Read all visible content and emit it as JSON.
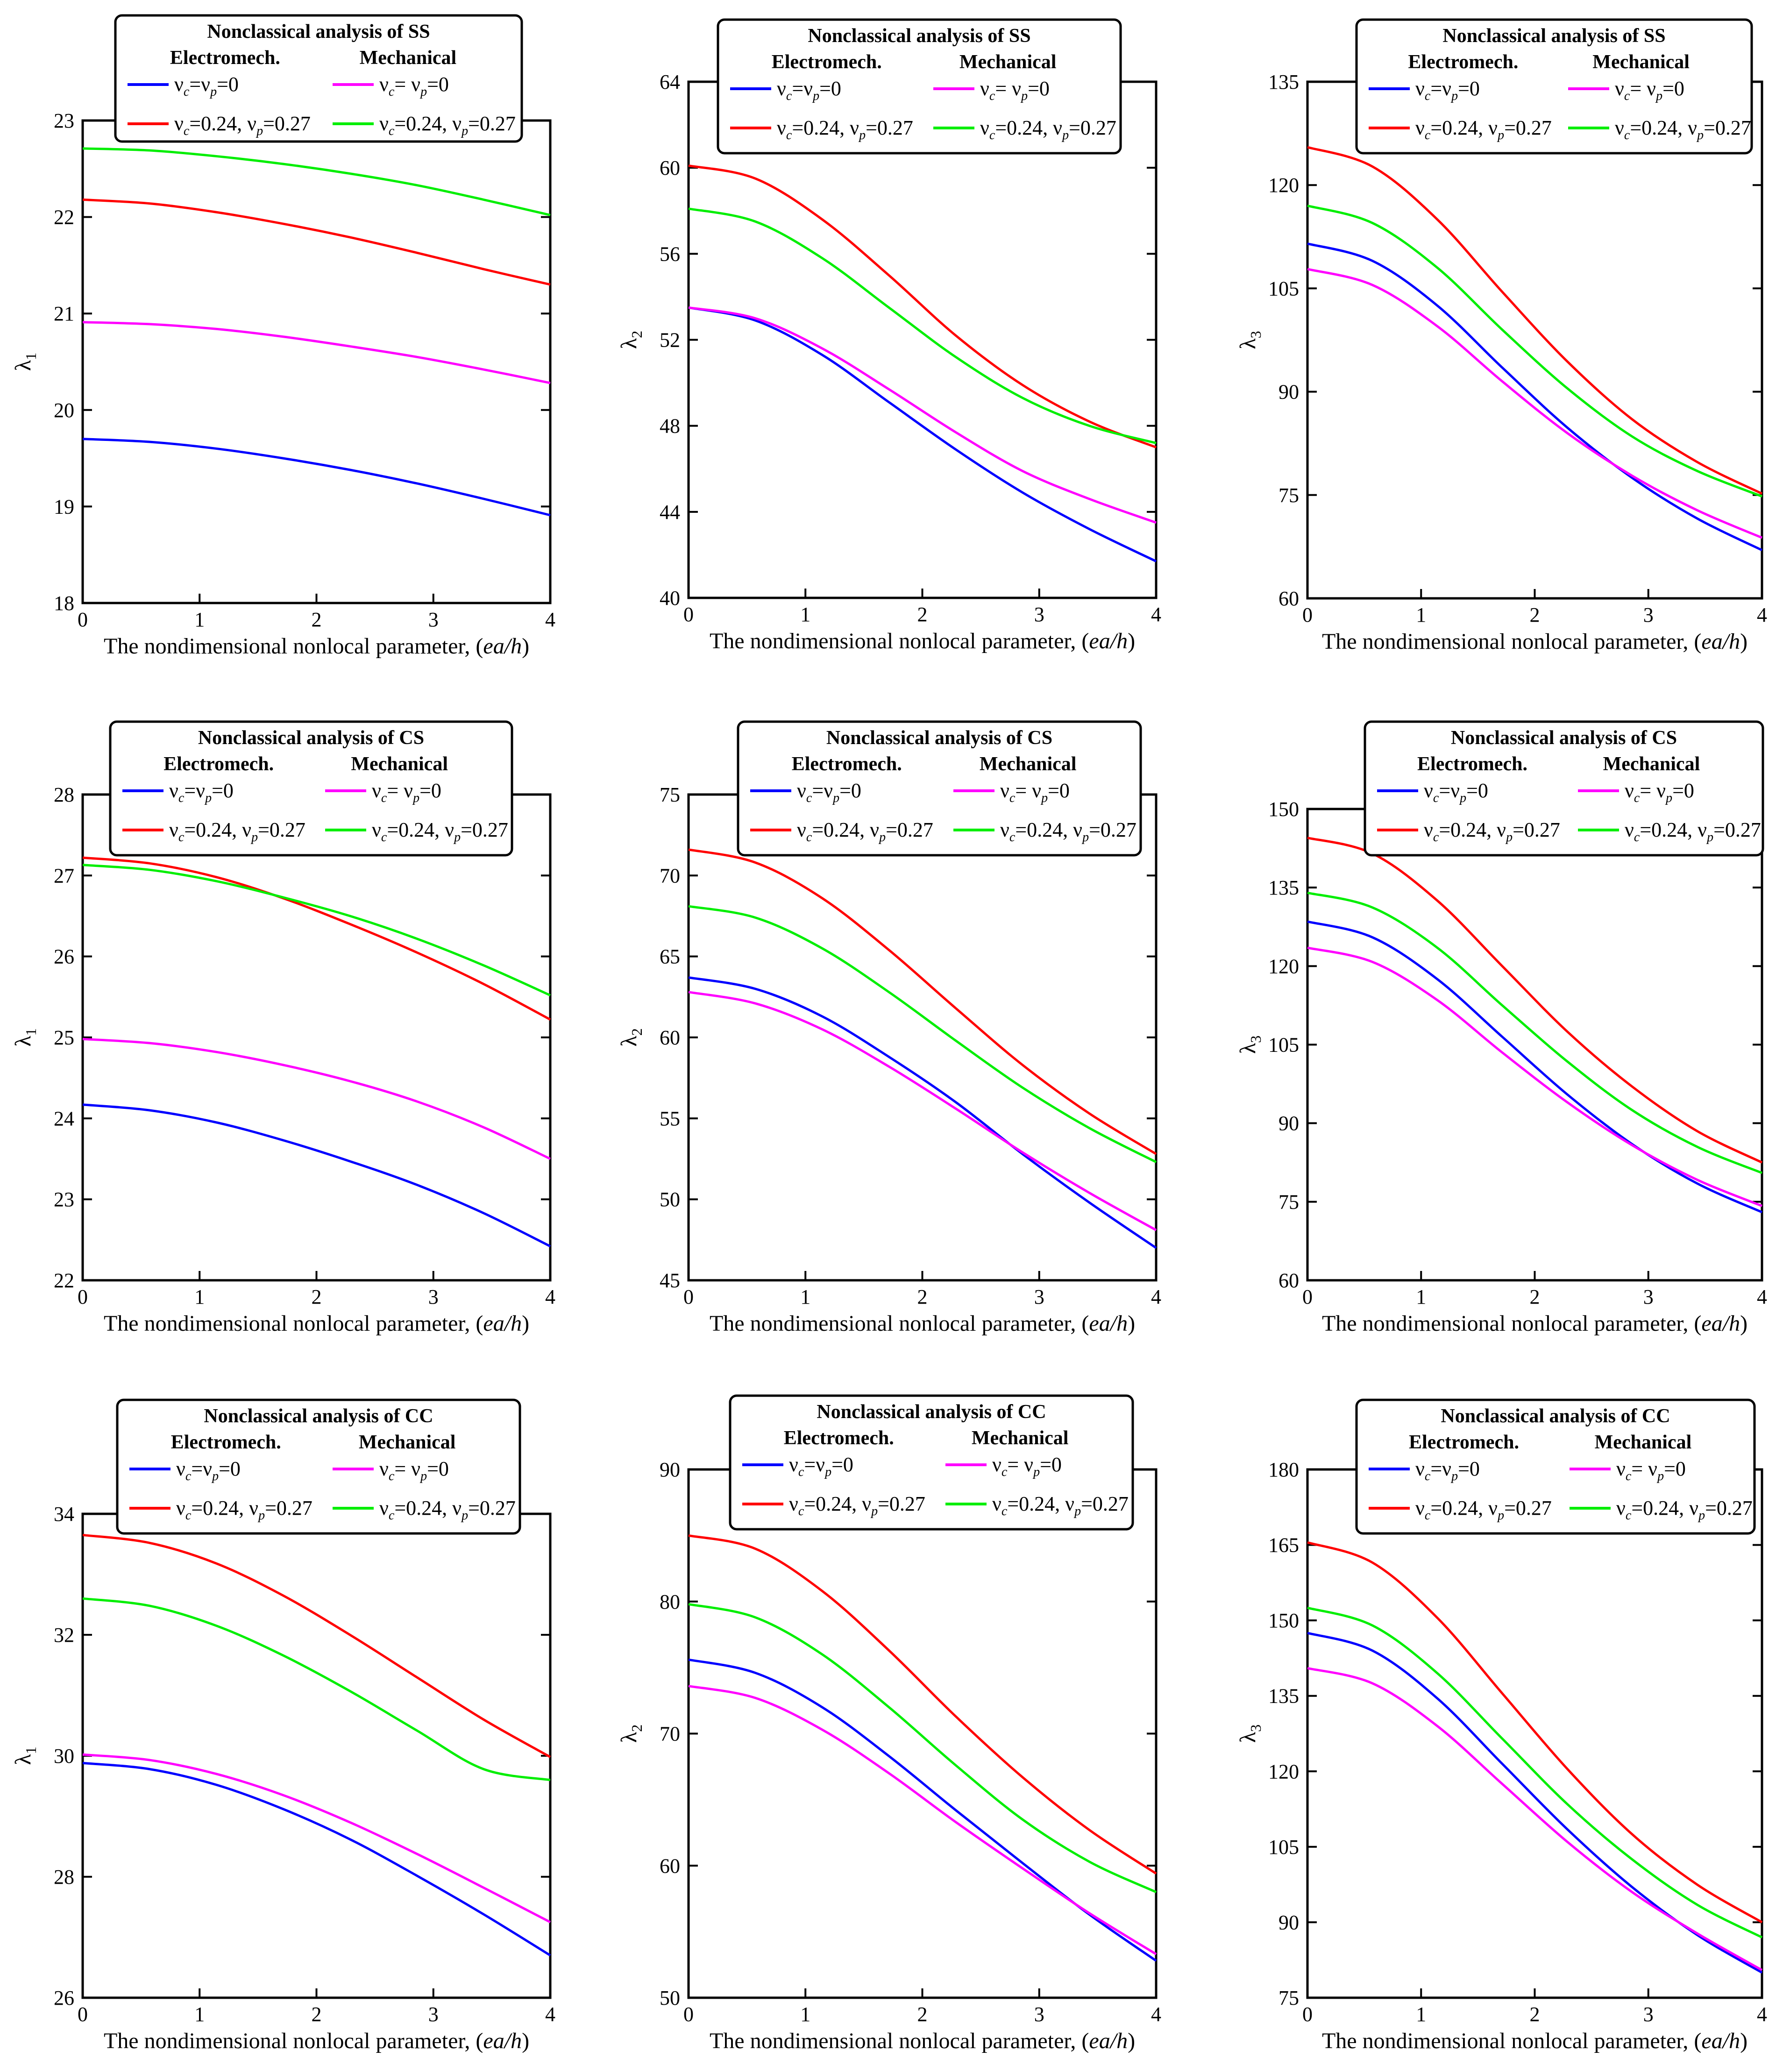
{
  "chart_data": [
    {
      "type": "line",
      "title": "Nonclassical analysis of SS",
      "xlabel": "The nondimensional nonlocal parameter, (ea/h)",
      "ylabel": "λ1",
      "xlim": [
        0,
        4
      ],
      "ylim": [
        18,
        23
      ],
      "xticks": [
        0,
        1,
        2,
        3,
        4
      ],
      "yticks": [
        18,
        19,
        20,
        21,
        22,
        23
      ],
      "series": [
        {
          "name": "νc=νp=0",
          "group": "Electromech.",
          "values": [
            19.7,
            19.67,
            19.6,
            19.5,
            19.38,
            19.24,
            19.08,
            18.91
          ]
        },
        {
          "name": "νc= νp=0",
          "group": "Mechanical",
          "values": [
            20.91,
            20.89,
            20.84,
            20.76,
            20.66,
            20.55,
            20.42,
            20.28
          ]
        },
        {
          "name": "νc=0.24, νp=0.27",
          "group": "Electromech.",
          "values": [
            22.18,
            22.14,
            22.05,
            21.93,
            21.79,
            21.63,
            21.46,
            21.3
          ]
        },
        {
          "name": "νc=0.24, νp=0.27",
          "group": "Mechanical",
          "values": [
            22.71,
            22.69,
            22.63,
            22.55,
            22.45,
            22.33,
            22.18,
            22.02
          ]
        }
      ]
    },
    {
      "type": "line",
      "title": "Nonclassical analysis of SS",
      "xlabel": "The nondimensional nonlocal parameter, (ea/h)",
      "ylabel": "λ2",
      "xlim": [
        0,
        4
      ],
      "ylim": [
        40,
        64
      ],
      "xticks": [
        0,
        1,
        2,
        3,
        4
      ],
      "yticks": [
        40,
        44,
        48,
        52,
        56,
        60,
        64
      ],
      "series": [
        {
          "name": "νc=νp=0",
          "group": "Electromech.",
          "values": [
            53.5,
            52.9,
            51.3,
            49.1,
            46.9,
            44.9,
            43.2,
            41.7
          ]
        },
        {
          "name": "νc= νp=0",
          "group": "Mechanical",
          "values": [
            53.5,
            53.0,
            51.6,
            49.7,
            47.7,
            45.9,
            44.6,
            43.5
          ]
        },
        {
          "name": "νc=0.24, νp=0.27",
          "group": "Electromech.",
          "values": [
            60.1,
            59.5,
            57.6,
            55.0,
            52.2,
            49.9,
            48.2,
            47.0
          ]
        },
        {
          "name": "νc=0.24, νp=0.27",
          "group": "Mechanical",
          "values": [
            58.1,
            57.5,
            55.8,
            53.5,
            51.2,
            49.3,
            48.0,
            47.2
          ]
        }
      ]
    },
    {
      "type": "line",
      "title": "Nonclassical analysis of SS",
      "xlabel": "The nondimensional nonlocal parameter, (ea/h)",
      "ylabel": "λ3",
      "xlim": [
        0,
        4
      ],
      "ylim": [
        60,
        135
      ],
      "xticks": [
        0,
        1,
        2,
        3,
        4
      ],
      "yticks": [
        60,
        75,
        90,
        105,
        120,
        135
      ],
      "series": [
        {
          "name": "νc=νp=0",
          "group": "Electromech.",
          "values": [
            111.5,
            109.0,
            102.5,
            93.5,
            84.8,
            77.5,
            71.6,
            67.0
          ]
        },
        {
          "name": "νc= νp=0",
          "group": "Mechanical",
          "values": [
            107.8,
            105.5,
            99.5,
            91.5,
            84.0,
            77.8,
            72.8,
            68.8
          ]
        },
        {
          "name": "νc=0.24, νp=0.27",
          "group": "Electromech.",
          "values": [
            125.5,
            122.7,
            115.0,
            104.5,
            94.4,
            86.0,
            79.8,
            75.2
          ]
        },
        {
          "name": "νc=0.24, νp=0.27",
          "group": "Mechanical",
          "values": [
            117.0,
            114.5,
            108.0,
            99.0,
            90.5,
            83.5,
            78.5,
            74.8
          ]
        }
      ]
    },
    {
      "type": "line",
      "title": "Nonclassical analysis of CS",
      "xlabel": "The nondimensional nonlocal parameter, (ea/h)",
      "ylabel": "λ1",
      "xlim": [
        0,
        4
      ],
      "ylim": [
        22,
        28
      ],
      "xticks": [
        0,
        1,
        2,
        3,
        4
      ],
      "yticks": [
        22,
        23,
        24,
        25,
        26,
        27,
        28
      ],
      "series": [
        {
          "name": "νc=νp=0",
          "group": "Electromech.",
          "values": [
            24.17,
            24.1,
            23.95,
            23.73,
            23.47,
            23.18,
            22.83,
            22.42
          ]
        },
        {
          "name": "νc= νp=0",
          "group": "Mechanical",
          "values": [
            24.98,
            24.93,
            24.82,
            24.66,
            24.46,
            24.21,
            23.89,
            23.5
          ]
        },
        {
          "name": "νc=0.24, νp=0.27",
          "group": "Electromech.",
          "values": [
            27.22,
            27.15,
            26.98,
            26.72,
            26.4,
            26.05,
            25.66,
            25.22
          ]
        },
        {
          "name": "νc=0.24, νp=0.27",
          "group": "Mechanical",
          "values": [
            27.13,
            27.07,
            26.93,
            26.73,
            26.5,
            26.22,
            25.89,
            25.52
          ]
        }
      ]
    },
    {
      "type": "line",
      "title": "Nonclassical analysis of CS",
      "xlabel": "The nondimensional nonlocal parameter, (ea/h)",
      "ylabel": "λ2",
      "xlim": [
        0,
        4
      ],
      "ylim": [
        45,
        75
      ],
      "xticks": [
        0,
        1,
        2,
        3,
        4
      ],
      "yticks": [
        45,
        50,
        55,
        60,
        65,
        70,
        75
      ],
      "series": [
        {
          "name": "νc=νp=0",
          "group": "Electromech.",
          "values": [
            63.7,
            63.0,
            61.3,
            58.8,
            56.0,
            52.8,
            49.8,
            47.0
          ]
        },
        {
          "name": "νc= νp=0",
          "group": "Mechanical",
          "values": [
            62.8,
            62.1,
            60.5,
            58.2,
            55.6,
            52.9,
            50.4,
            48.1
          ]
        },
        {
          "name": "νc=0.24, νp=0.27",
          "group": "Electromech.",
          "values": [
            71.6,
            70.8,
            68.6,
            65.4,
            61.8,
            58.3,
            55.3,
            52.8
          ]
        },
        {
          "name": "νc=0.24, νp=0.27",
          "group": "Mechanical",
          "values": [
            68.1,
            67.4,
            65.5,
            62.8,
            59.8,
            56.9,
            54.4,
            52.3
          ]
        }
      ]
    },
    {
      "type": "line",
      "title": "Nonclassical analysis of CS",
      "xlabel": "The nondimensional nonlocal parameter, (ea/h)",
      "ylabel": "λ3",
      "xlim": [
        0,
        4
      ],
      "ylim": [
        60,
        150
      ],
      "xticks": [
        0,
        1,
        2,
        3,
        4
      ],
      "yticks": [
        60,
        75,
        90,
        105,
        120,
        135,
        150
      ],
      "series": [
        {
          "name": "νc=νp=0",
          "group": "Electromech.",
          "values": [
            128.5,
            125.5,
            117.5,
            106.5,
            95.5,
            86.0,
            78.5,
            73.0
          ]
        },
        {
          "name": "νc= νp=0",
          "group": "Mechanical",
          "values": [
            123.5,
            120.8,
            113.5,
            103.5,
            94.0,
            85.8,
            79.2,
            74.2
          ]
        },
        {
          "name": "νc=0.24, νp=0.27",
          "group": "Electromech.",
          "values": [
            144.5,
            141.5,
            132.5,
            120.0,
            107.5,
            97.0,
            88.5,
            82.5
          ]
        },
        {
          "name": "νc=0.24, νp=0.27",
          "group": "Mechanical",
          "values": [
            134.0,
            131.2,
            123.5,
            112.5,
            101.8,
            92.5,
            85.5,
            80.5
          ]
        }
      ]
    },
    {
      "type": "line",
      "title": "Nonclassical analysis of CC",
      "xlabel": "The nondimensional nonlocal parameter, (ea/h)",
      "ylabel": "λ1",
      "xlim": [
        0,
        4
      ],
      "ylim": [
        26,
        34
      ],
      "xticks": [
        0,
        1,
        2,
        3,
        4
      ],
      "yticks": [
        26,
        28,
        30,
        32,
        34
      ],
      "series": [
        {
          "name": "νc=νp=0",
          "group": "Electromech.",
          "values": [
            29.88,
            29.78,
            29.52,
            29.12,
            28.62,
            28.02,
            27.38,
            26.7
          ]
        },
        {
          "name": "νc= νp=0",
          "group": "Mechanical",
          "values": [
            30.02,
            29.93,
            29.7,
            29.35,
            28.9,
            28.38,
            27.82,
            27.25
          ]
        },
        {
          "name": "νc=0.24, νp=0.27",
          "group": "Electromech.",
          "values": [
            33.65,
            33.52,
            33.18,
            32.65,
            32.0,
            31.3,
            30.6,
            29.98
          ]
        },
        {
          "name": "νc=0.24, νp=0.27",
          "group": "Mechanical",
          "values": [
            32.6,
            32.48,
            32.15,
            31.66,
            31.07,
            30.42,
            29.78,
            29.6
          ]
        }
      ]
    },
    {
      "type": "line",
      "title": "Nonclassical analysis of CC",
      "xlabel": "The nondimensional nonlocal parameter, (ea/h)",
      "ylabel": "λ2",
      "xlim": [
        0,
        4
      ],
      "ylim": [
        50,
        90
      ],
      "xticks": [
        0,
        1,
        2,
        3,
        4
      ],
      "yticks": [
        50,
        60,
        70,
        80,
        90
      ],
      "series": [
        {
          "name": "νc=νp=0",
          "group": "Electromech.",
          "values": [
            75.6,
            74.6,
            72.0,
            68.3,
            64.2,
            60.2,
            56.3,
            52.8
          ]
        },
        {
          "name": "νc= νp=0",
          "group": "Mechanical",
          "values": [
            73.6,
            72.7,
            70.3,
            67.0,
            63.3,
            59.8,
            56.4,
            53.3
          ]
        },
        {
          "name": "νc=0.24, νp=0.27",
          "group": "Electromech.",
          "values": [
            85.0,
            84.0,
            80.8,
            76.3,
            71.3,
            66.7,
            62.7,
            59.4
          ]
        },
        {
          "name": "νc=0.24, νp=0.27",
          "group": "Mechanical",
          "values": [
            79.8,
            78.8,
            76.0,
            72.0,
            67.6,
            63.5,
            60.3,
            58.0
          ]
        }
      ]
    },
    {
      "type": "line",
      "title": "Nonclassical analysis of CC",
      "xlabel": "The nondimensional nonlocal parameter, (ea/h)",
      "ylabel": "λ3",
      "xlim": [
        0,
        4
      ],
      "ylim": [
        75,
        180
      ],
      "xticks": [
        0,
        1,
        2,
        3,
        4
      ],
      "yticks": [
        75,
        90,
        105,
        120,
        135,
        150,
        165,
        180
      ],
      "series": [
        {
          "name": "νc=νp=0",
          "group": "Electromech.",
          "values": [
            147.5,
            144.0,
            134.5,
            121.5,
            108.5,
            97.0,
            87.5,
            80.0
          ]
        },
        {
          "name": "νc= νp=0",
          "group": "Mechanical",
          "values": [
            140.5,
            137.5,
            129.0,
            117.5,
            106.0,
            96.0,
            87.8,
            80.5
          ]
        },
        {
          "name": "νc=0.24, νp=0.27",
          "group": "Electromech.",
          "values": [
            165.5,
            161.5,
            150.5,
            135.5,
            120.5,
            107.5,
            97.5,
            90.0
          ]
        },
        {
          "name": "νc=0.24, νp=0.27",
          "group": "Mechanical",
          "values": [
            152.5,
            149.0,
            139.5,
            126.5,
            113.5,
            102.5,
            93.5,
            87.0
          ]
        }
      ]
    }
  ],
  "colors": {
    "electro_zero": "#0000ff",
    "mech_zero": "#ff00ff",
    "electro_poisson": "#ff0000",
    "mech_poisson": "#00ee00",
    "axis": "#000000"
  },
  "x_positions": [
    0,
    0.571,
    1.143,
    1.714,
    2.286,
    2.857,
    3.429,
    4
  ]
}
